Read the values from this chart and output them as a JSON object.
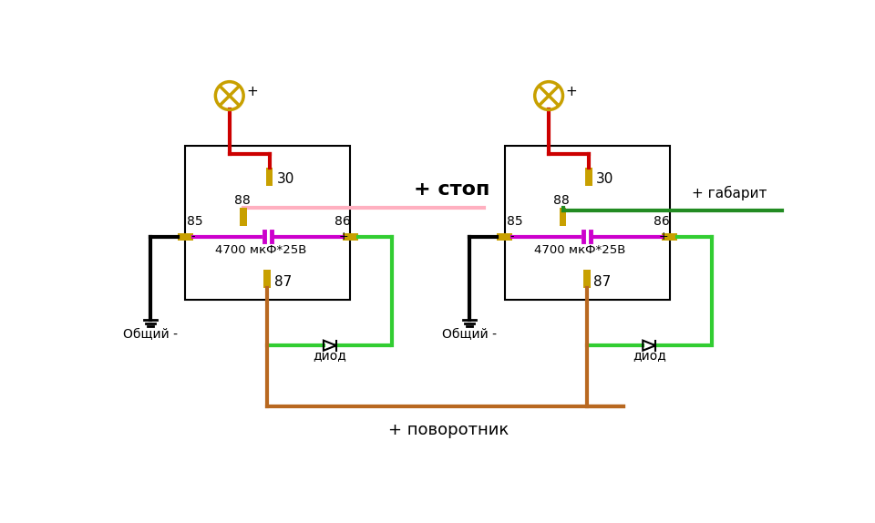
{
  "bg_color": "#ffffff",
  "figsize": [
    9.6,
    5.74
  ],
  "dpi": 100,
  "relay_color": "#C8A000",
  "wire_red": "#cc0000",
  "wire_black": "#000000",
  "wire_green": "#32CD32",
  "wire_dark_green": "#228B22",
  "wire_pink": "#FFB0C0",
  "wire_purple": "#CC00CC",
  "wire_brown": "#B86820",
  "cap_color": "#CC00CC",
  "bulb_color": "#C8A000",
  "text_color": "#000000",
  "label_stop": "+ стоп",
  "label_gabarit": "+ габарит",
  "label_povorotnik": "+ поворотник",
  "label_obshiy": "Общий -",
  "label_diod": "диод",
  "label_cap": "4700 мкФ*25В",
  "label_30": "30",
  "label_85": "85",
  "label_86": "86",
  "label_87": "87",
  "label_88": "88",
  "label_plus": "+",
  "label_minus": "-"
}
